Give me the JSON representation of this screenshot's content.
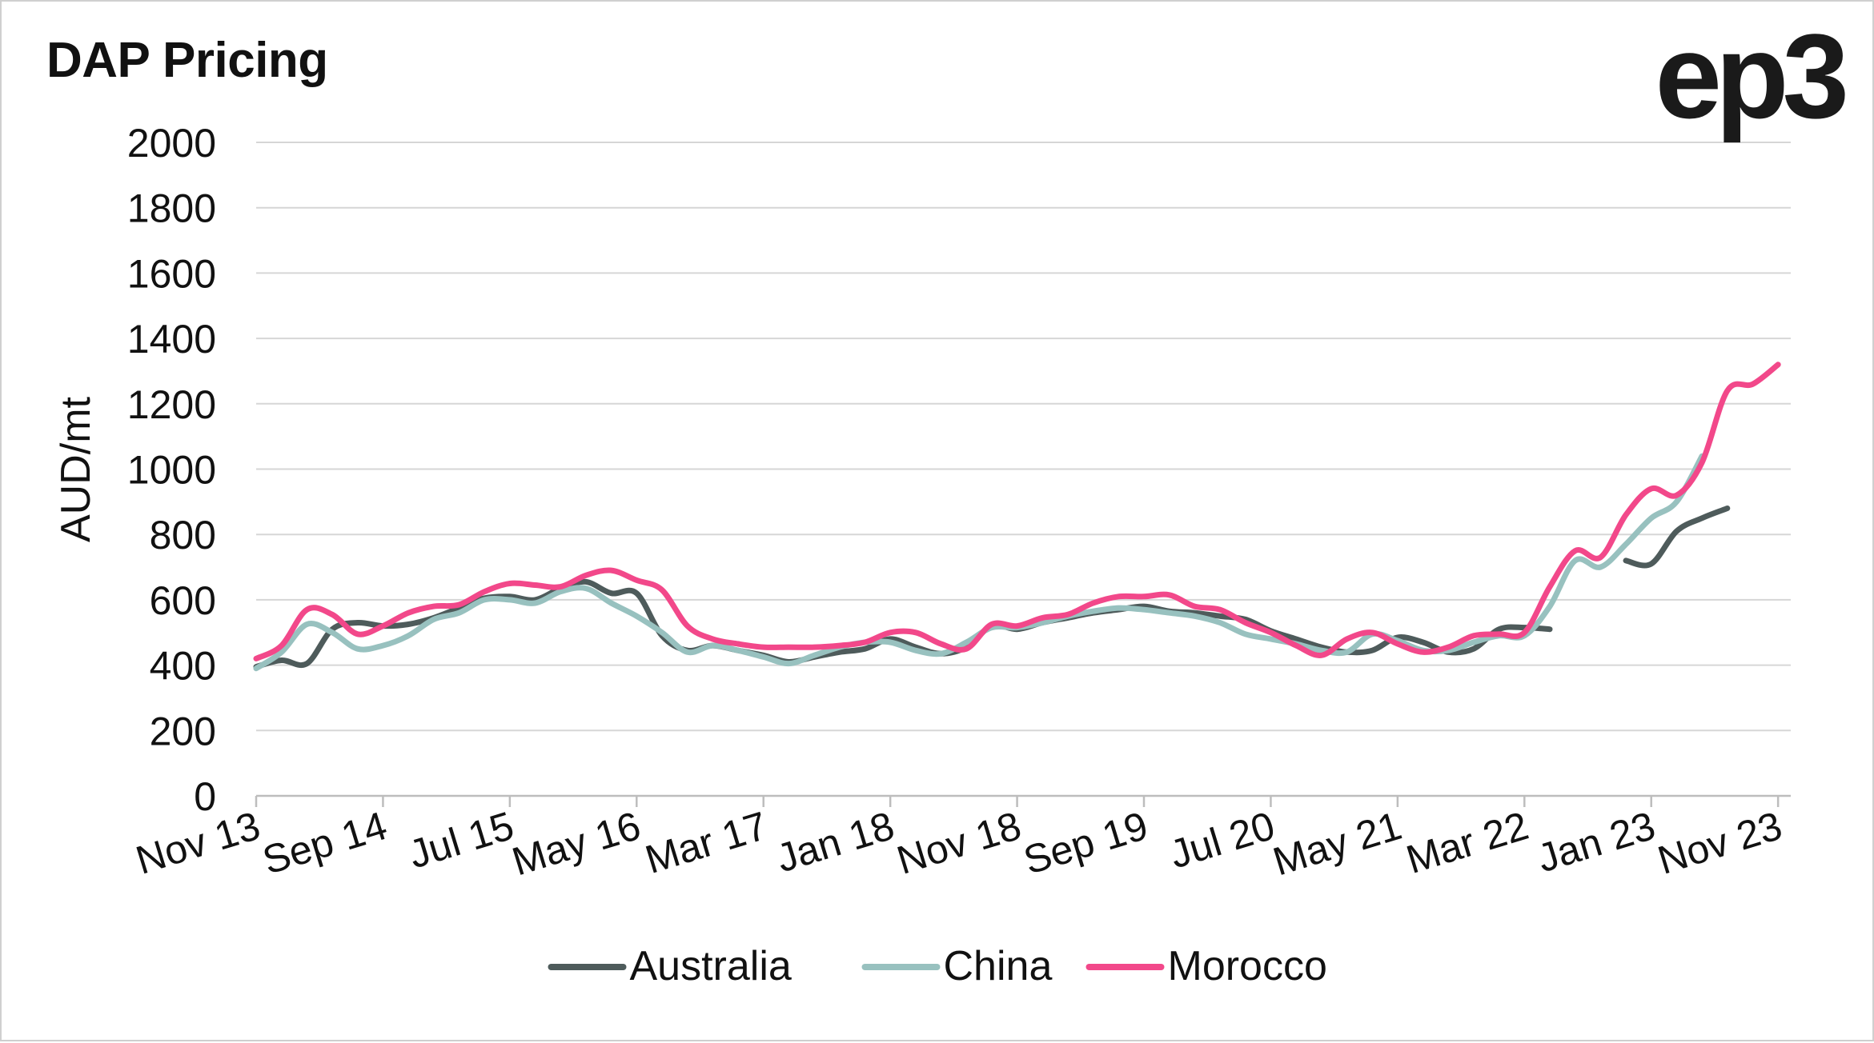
{
  "brand": {
    "logo_text": "ep3"
  },
  "colors": {
    "Australia": "#4e5b5b",
    "China": "#98c1bf",
    "Morocco": "#f2488a",
    "grid": "#d6d6d6",
    "axis": "#bdbdbd"
  },
  "chart_data": {
    "type": "line",
    "title": "DAP Pricing",
    "xlabel": "",
    "ylabel": "AUD/mt",
    "ylim": [
      0,
      2000
    ],
    "yticks": [
      0,
      200,
      400,
      600,
      800,
      1000,
      1200,
      1400,
      1600,
      1800,
      2000
    ],
    "xlim": [
      "2013-11",
      "2023-12"
    ],
    "xtick_labels": [
      "Nov 13",
      "Sep 14",
      "Jul 15",
      "May 16",
      "Mar 17",
      "Jan 18",
      "Nov 18",
      "Sep 19",
      "Jul 20",
      "May 21",
      "Mar 22",
      "Jan 23",
      "Nov 23"
    ],
    "xtick_dates": [
      "2013-11",
      "2014-09",
      "2015-07",
      "2016-05",
      "2017-03",
      "2018-01",
      "2018-11",
      "2019-09",
      "2020-07",
      "2021-05",
      "2022-03",
      "2023-01",
      "2023-11"
    ],
    "grid": true,
    "legend": "bottom-center",
    "series": [
      {
        "name": "Australia",
        "points": [
          [
            "2013-11",
            395
          ],
          [
            "2014-01",
            415
          ],
          [
            "2014-03",
            405
          ],
          [
            "2014-05",
            510
          ],
          [
            "2014-07",
            530
          ],
          [
            "2014-09",
            520
          ],
          [
            "2014-11",
            525
          ],
          [
            "2015-01",
            545
          ],
          [
            "2015-03",
            575
          ],
          [
            "2015-05",
            605
          ],
          [
            "2015-07",
            610
          ],
          [
            "2015-09",
            600
          ],
          [
            "2015-11",
            635
          ],
          [
            "2016-01",
            655
          ],
          [
            "2016-03",
            620
          ],
          [
            "2016-05",
            620
          ],
          [
            "2016-07",
            490
          ],
          [
            "2016-09",
            445
          ],
          [
            "2016-11",
            460
          ],
          [
            "2017-01",
            445
          ],
          [
            "2017-03",
            430
          ],
          [
            "2017-05",
            410
          ],
          [
            "2017-07",
            425
          ],
          [
            "2017-09",
            440
          ],
          [
            "2017-11",
            450
          ],
          [
            "2018-01",
            480
          ],
          [
            "2018-03",
            455
          ],
          [
            "2018-05",
            435
          ],
          [
            "2018-07",
            455
          ],
          [
            "2018-09",
            520
          ],
          [
            "2018-11",
            510
          ],
          [
            "2019-01",
            530
          ],
          [
            "2019-03",
            545
          ],
          [
            "2019-05",
            560
          ],
          [
            "2019-07",
            570
          ],
          [
            "2019-09",
            580
          ],
          [
            "2019-11",
            565
          ],
          [
            "2020-01",
            560
          ],
          [
            "2020-03",
            550
          ],
          [
            "2020-05",
            540
          ],
          [
            "2020-07",
            505
          ],
          [
            "2020-09",
            480
          ],
          [
            "2020-11",
            455
          ],
          [
            "2021-01",
            440
          ],
          [
            "2021-03",
            445
          ],
          [
            "2021-05",
            485
          ],
          [
            "2021-07",
            470
          ],
          [
            "2021-09",
            440
          ],
          [
            "2021-11",
            450
          ],
          [
            "2022-01",
            510
          ],
          [
            "2022-03",
            515
          ],
          [
            "2022-05",
            510
          ],
          [
            "2022-07",
            null
          ],
          [
            "2022-09",
            null
          ],
          [
            "2022-11",
            720
          ],
          [
            "2023-01",
            710
          ],
          [
            "2023-03",
            810
          ],
          [
            "2023-05",
            850
          ],
          [
            "2023-07",
            880
          ]
        ]
      },
      {
        "name": "China",
        "points": [
          [
            "2013-11",
            390
          ],
          [
            "2014-01",
            440
          ],
          [
            "2014-03",
            525
          ],
          [
            "2014-05",
            500
          ],
          [
            "2014-07",
            450
          ],
          [
            "2014-09",
            460
          ],
          [
            "2014-11",
            490
          ],
          [
            "2015-01",
            540
          ],
          [
            "2015-03",
            560
          ],
          [
            "2015-05",
            600
          ],
          [
            "2015-07",
            600
          ],
          [
            "2015-09",
            590
          ],
          [
            "2015-11",
            625
          ],
          [
            "2016-01",
            635
          ],
          [
            "2016-03",
            590
          ],
          [
            "2016-05",
            550
          ],
          [
            "2016-07",
            500
          ],
          [
            "2016-09",
            440
          ],
          [
            "2016-11",
            460
          ],
          [
            "2017-01",
            445
          ],
          [
            "2017-03",
            425
          ],
          [
            "2017-05",
            405
          ],
          [
            "2017-07",
            430
          ],
          [
            "2017-09",
            455
          ],
          [
            "2017-11",
            470
          ],
          [
            "2018-01",
            470
          ],
          [
            "2018-03",
            445
          ],
          [
            "2018-05",
            435
          ],
          [
            "2018-07",
            470
          ],
          [
            "2018-09",
            515
          ],
          [
            "2018-11",
            515
          ],
          [
            "2019-01",
            530
          ],
          [
            "2019-03",
            550
          ],
          [
            "2019-05",
            565
          ],
          [
            "2019-07",
            575
          ],
          [
            "2019-09",
            570
          ],
          [
            "2019-11",
            560
          ],
          [
            "2020-01",
            550
          ],
          [
            "2020-03",
            530
          ],
          [
            "2020-05",
            495
          ],
          [
            "2020-07",
            480
          ],
          [
            "2020-09",
            465
          ],
          [
            "2020-11",
            445
          ],
          [
            "2021-01",
            440
          ],
          [
            "2021-03",
            495
          ],
          [
            "2021-05",
            475
          ],
          [
            "2021-07",
            445
          ],
          [
            "2021-09",
            445
          ],
          [
            "2021-11",
            470
          ],
          [
            "2022-01",
            490
          ],
          [
            "2022-03",
            490
          ],
          [
            "2022-05",
            580
          ],
          [
            "2022-07",
            720
          ],
          [
            "2022-09",
            700
          ],
          [
            "2022-11",
            770
          ],
          [
            "2023-01",
            850
          ],
          [
            "2023-03",
            900
          ],
          [
            "2023-05",
            1040
          ]
        ]
      },
      {
        "name": "Morocco",
        "points": [
          [
            "2013-11",
            420
          ],
          [
            "2014-01",
            460
          ],
          [
            "2014-03",
            570
          ],
          [
            "2014-05",
            555
          ],
          [
            "2014-07",
            495
          ],
          [
            "2014-09",
            520
          ],
          [
            "2014-11",
            560
          ],
          [
            "2015-01",
            580
          ],
          [
            "2015-03",
            585
          ],
          [
            "2015-05",
            625
          ],
          [
            "2015-07",
            650
          ],
          [
            "2015-09",
            645
          ],
          [
            "2015-11",
            640
          ],
          [
            "2016-01",
            675
          ],
          [
            "2016-03",
            690
          ],
          [
            "2016-05",
            660
          ],
          [
            "2016-07",
            630
          ],
          [
            "2016-09",
            520
          ],
          [
            "2016-11",
            480
          ],
          [
            "2017-01",
            465
          ],
          [
            "2017-03",
            455
          ],
          [
            "2017-05",
            455
          ],
          [
            "2017-07",
            455
          ],
          [
            "2017-09",
            460
          ],
          [
            "2017-11",
            470
          ],
          [
            "2018-01",
            500
          ],
          [
            "2018-03",
            500
          ],
          [
            "2018-05",
            465
          ],
          [
            "2018-07",
            450
          ],
          [
            "2018-09",
            525
          ],
          [
            "2018-11",
            520
          ],
          [
            "2019-01",
            545
          ],
          [
            "2019-03",
            555
          ],
          [
            "2019-05",
            590
          ],
          [
            "2019-07",
            610
          ],
          [
            "2019-09",
            610
          ],
          [
            "2019-11",
            615
          ],
          [
            "2020-01",
            580
          ],
          [
            "2020-03",
            570
          ],
          [
            "2020-05",
            530
          ],
          [
            "2020-07",
            500
          ],
          [
            "2020-09",
            460
          ],
          [
            "2020-11",
            430
          ],
          [
            "2021-01",
            480
          ],
          [
            "2021-03",
            500
          ],
          [
            "2021-05",
            465
          ],
          [
            "2021-07",
            440
          ],
          [
            "2021-09",
            455
          ],
          [
            "2021-11",
            490
          ],
          [
            "2022-01",
            495
          ],
          [
            "2022-03",
            500
          ],
          [
            "2022-05",
            640
          ],
          [
            "2022-07",
            750
          ],
          [
            "2022-09",
            730
          ],
          [
            "2022-11",
            860
          ],
          [
            "2023-01",
            940
          ],
          [
            "2023-03",
            920
          ],
          [
            "2023-05",
            1020
          ],
          [
            "2023-07",
            1240
          ],
          [
            "2023-09",
            1260
          ],
          [
            "2023-11",
            1320
          ]
        ]
      }
    ]
  }
}
